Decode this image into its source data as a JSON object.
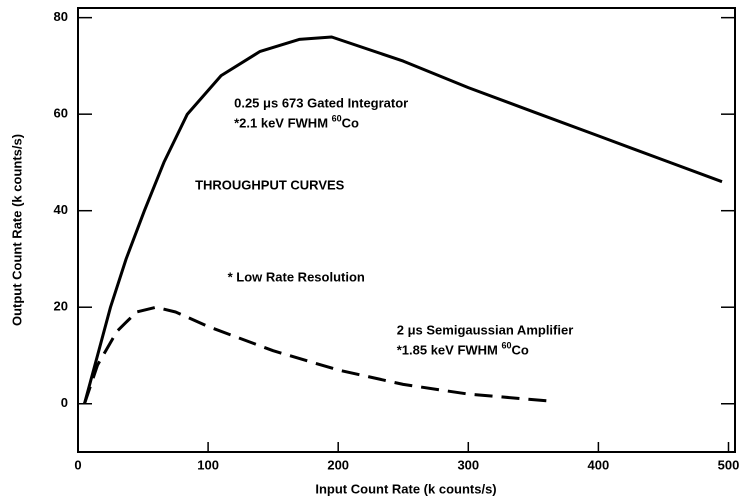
{
  "chart_data": {
    "type": "line",
    "xlabel": "Input Count Rate (k counts/s)",
    "ylabel": "Output Count Rate (k counts/s)",
    "xlim": [
      0,
      505
    ],
    "ylim": [
      -10,
      82
    ],
    "xticks": [
      0,
      100,
      200,
      300,
      400,
      500
    ],
    "yticks": [
      0,
      20,
      40,
      60,
      80
    ],
    "series": [
      {
        "color": "#000000",
        "dashed": false,
        "x": [
          5,
          15,
          25,
          37,
          51,
          66,
          84,
          110,
          140,
          170,
          195,
          250,
          300,
          350,
          400,
          450,
          495
        ],
        "values": [
          0,
          10,
          20,
          30,
          40,
          50,
          60,
          68,
          73,
          75.5,
          76,
          71,
          65.5,
          60.5,
          55.5,
          50.5,
          46
        ]
      },
      {
        "color": "#000000",
        "dashed": true,
        "x": [
          5,
          15,
          30,
          45,
          60,
          75,
          100,
          150,
          200,
          250,
          300,
          365
        ],
        "values": [
          0,
          8,
          15,
          19,
          20,
          19,
          16,
          11,
          7,
          4,
          2,
          0.5
        ]
      }
    ],
    "annotations": [
      {
        "lines": [
          [
            "0.25 μs 673 Gated Integrator"
          ],
          [
            "*2.1 keV FWHM ",
            "60",
            "Co"
          ]
        ],
        "x": 120,
        "y": 62
      },
      {
        "lines": [
          [
            "THROUGHPUT CURVES"
          ]
        ],
        "x": 90,
        "y": 45
      },
      {
        "lines": [
          [
            "* Low Rate Resolution"
          ]
        ],
        "x": 115,
        "y": 26
      },
      {
        "lines": [
          [
            "2 μs Semigaussian Amplifier"
          ],
          [
            "*1.85 keV FWHM ",
            "60",
            "Co"
          ]
        ],
        "x": 245,
        "y": 15
      }
    ]
  }
}
